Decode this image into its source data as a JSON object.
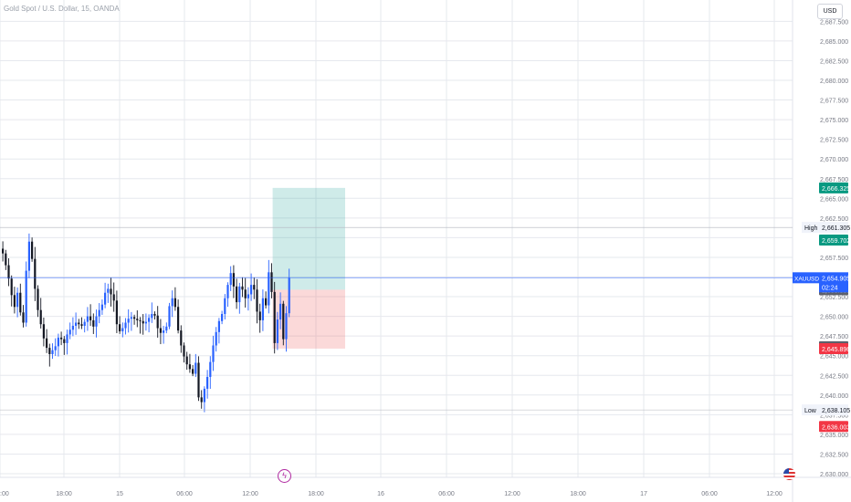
{
  "header": {
    "title": "Gold Spot / U.S. Dollar, 15, OANDA",
    "currency_button": "USD"
  },
  "colors": {
    "up": "#2962ff",
    "down": "#131722",
    "profit": "#26a69a",
    "loss": "#ef5350",
    "current_line": "#2962ff",
    "grid": "#e6e8ee"
  },
  "icons": {
    "flash": "lightning-icon",
    "flag": "us-flag-icon"
  },
  "chart_data": {
    "type": "candlestick",
    "ylim": [
      2628.5,
      2689
    ],
    "y_ticks": [
      "2,630.000",
      "2,632.500",
      "2,635.000",
      "2,637.500",
      "2,640.000",
      "2,642.500",
      "2,645.000",
      "2,647.500",
      "2,650.000",
      "2,652.500",
      "2,655.000",
      "2,657.500",
      "2,660.000",
      "2,662.500",
      "2,665.000",
      "2,667.500",
      "2,670.000",
      "2,672.500",
      "2,675.000",
      "2,677.500",
      "2,680.000",
      "2,682.500",
      "2,685.000",
      "2,687.500"
    ],
    "x_labels": [
      ":00",
      "18:00",
      "15",
      "06:00",
      "12:00",
      "18:00",
      "16",
      "06:00",
      "12:00",
      "18:00",
      "17",
      "06:00",
      "12:00"
    ],
    "close_series": [
      2658.0,
      2656.5,
      2654.8,
      2652.7,
      2651.2,
      2653.0,
      2650.5,
      2649.2,
      2655.8,
      2659.5,
      2657.3,
      2653.5,
      2650.8,
      2649.0,
      2647.2,
      2646.0,
      2645.2,
      2645.7,
      2646.2,
      2647.3,
      2647.1,
      2646.6,
      2647.7,
      2648.3,
      2648.8,
      2649.2,
      2649.0,
      2648.8,
      2649.3,
      2650.0,
      2649.5,
      2648.7,
      2650.0,
      2650.8,
      2651.5,
      2653.0,
      2653.5,
      2652.8,
      2652.0,
      2649.0,
      2648.1,
      2648.5,
      2649.2,
      2649.7,
      2649.9,
      2649.7,
      2649.5,
      2649.4,
      2649.1,
      2649.3,
      2649.8,
      2650.3,
      2650.1,
      2648.5,
      2647.9,
      2648.2,
      2648.7,
      2651.3,
      2652.3,
      2651.2,
      2648.2,
      2646.3,
      2644.9,
      2643.9,
      2643.3,
      2642.7,
      2644.1,
      2639.7,
      2639.1,
      2640.8,
      2642.3,
      2644.2,
      2646.3,
      2648.0,
      2649.4,
      2650.3,
      2652.3,
      2654.0,
      2655.5,
      2653.8,
      2651.8,
      2653.8,
      2653.4,
      2652.3,
      2652.8,
      2654.0,
      2653.4,
      2650.6,
      2649.5,
      2652.3,
      2651.4,
      2655.6,
      2653.1,
      2646.6,
      2649.6,
      2651.6,
      2647.1,
      2650.4,
      2654.9
    ],
    "series": [
      {
        "name": "High",
        "value": "2,661.305"
      },
      {
        "name": "Low",
        "value": "2,638.105"
      }
    ],
    "price_labels": [
      {
        "value": 2666.325,
        "text": "2,666.325",
        "kind": "profit"
      },
      {
        "value": 2659.702,
        "text": "2,659.702",
        "kind": "profit"
      },
      {
        "value": 2653.389,
        "text": "2,653.389",
        "kind": "neutral"
      },
      {
        "value": 2646.143,
        "text": "2,646.143",
        "kind": "neutral"
      },
      {
        "value": 2645.896,
        "text": "2,645.896",
        "kind": "loss"
      },
      {
        "value": 2636.003,
        "text": "2,636.003",
        "kind": "loss"
      }
    ],
    "current": {
      "symbol": "XAUUSD",
      "value": 2654.905,
      "text": "2,654.905",
      "countdown": "02:24"
    },
    "position": {
      "target": 2666.325,
      "entry": 2653.389,
      "stop": 2645.896,
      "start_index": 93,
      "end_index": 105
    }
  }
}
